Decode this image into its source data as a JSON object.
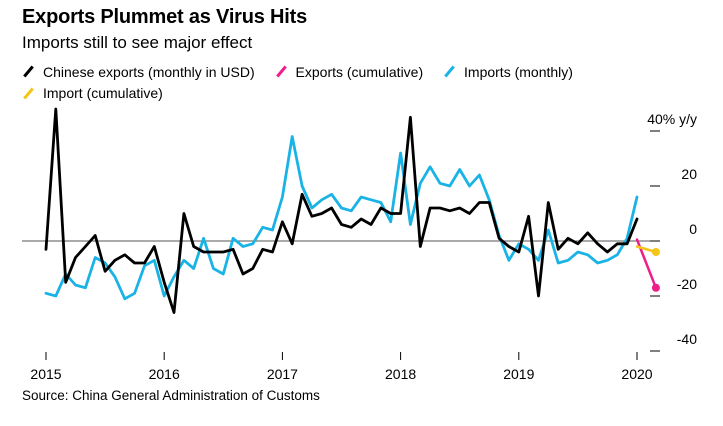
{
  "title": "Exports Plummet as Virus Hits",
  "subtitle": "Imports still to see major effect",
  "source": "Source: China General Administration of Customs",
  "legend": [
    {
      "label": "Chinese exports (monthly in USD)",
      "color": "#000000"
    },
    {
      "label": "Exports (cumulative)",
      "color": "#ee1d8a"
    },
    {
      "label": "Imports (monthly)",
      "color": "#19b3e6"
    },
    {
      "label": "Import (cumulative)",
      "color": "#f5c518"
    }
  ],
  "chart_data": {
    "type": "line",
    "title": "Exports Plummet as Virus Hits",
    "subtitle": "Imports still to see major effect",
    "ylabel": "% y/y",
    "ylim": [
      -40,
      40
    ],
    "y_ticks": [
      {
        "value": 40,
        "label": "40% y/y"
      },
      {
        "value": 20,
        "label": "20"
      },
      {
        "value": 0,
        "label": "0"
      },
      {
        "value": -20,
        "label": "-20"
      },
      {
        "value": -40,
        "label": "-40"
      }
    ],
    "x_ticks": [
      {
        "value": 2015,
        "label": "2015"
      },
      {
        "value": 2016,
        "label": "2016"
      },
      {
        "value": 2017,
        "label": "2017"
      },
      {
        "value": 2018,
        "label": "2018"
      },
      {
        "value": 2019,
        "label": "2019"
      },
      {
        "value": 2020,
        "label": "2020"
      }
    ],
    "xlim": [
      2014.83,
      2020.3
    ],
    "series": [
      {
        "name": "Chinese exports (monthly in USD)",
        "color": "#000000",
        "x_start": 2015.0,
        "step": 0.0833333,
        "values": [
          -3,
          48,
          -15,
          -6,
          -2,
          2,
          -11,
          -7,
          -5,
          -8,
          -8,
          -2,
          -15,
          -26,
          10,
          -2,
          -4,
          -4,
          -4,
          -3,
          -12,
          -10,
          -3,
          -4,
          7,
          -1,
          17,
          9,
          10,
          12,
          6,
          5,
          8,
          6,
          12,
          10,
          10,
          45,
          -2,
          12,
          12,
          11,
          12,
          10,
          14,
          14,
          1,
          -2,
          -4,
          9,
          -20,
          14,
          -3,
          1,
          -1,
          3,
          -1,
          -4,
          -1,
          -1,
          8
        ]
      },
      {
        "name": "Imports (monthly)",
        "color": "#19b3e6",
        "x_start": 2015.0,
        "step": 0.0833333,
        "values": [
          -19,
          -20,
          -12,
          -16,
          -17,
          -6,
          -8,
          -13,
          -21,
          -19,
          -9,
          -7,
          -20,
          -13,
          -7,
          -10,
          1,
          -10,
          -12,
          1,
          -2,
          -1,
          5,
          4,
          16,
          38,
          20,
          12,
          15,
          17,
          12,
          11,
          16,
          15,
          14,
          7,
          32,
          6,
          21,
          27,
          21,
          20,
          26,
          20,
          24,
          15,
          2,
          -7,
          -1,
          -3,
          -7,
          4,
          -8,
          -7,
          -4,
          -5,
          -8,
          -7,
          -5,
          1,
          16
        ]
      },
      {
        "name": "Exports (cumulative)",
        "color": "#ee1d8a",
        "points": [
          [
            2020.0,
            0.5
          ],
          [
            2020.16,
            -17
          ]
        ]
      },
      {
        "name": "Import (cumulative)",
        "color": "#f5c518",
        "points": [
          [
            2020.0,
            -2
          ],
          [
            2020.16,
            -4
          ]
        ]
      }
    ]
  }
}
